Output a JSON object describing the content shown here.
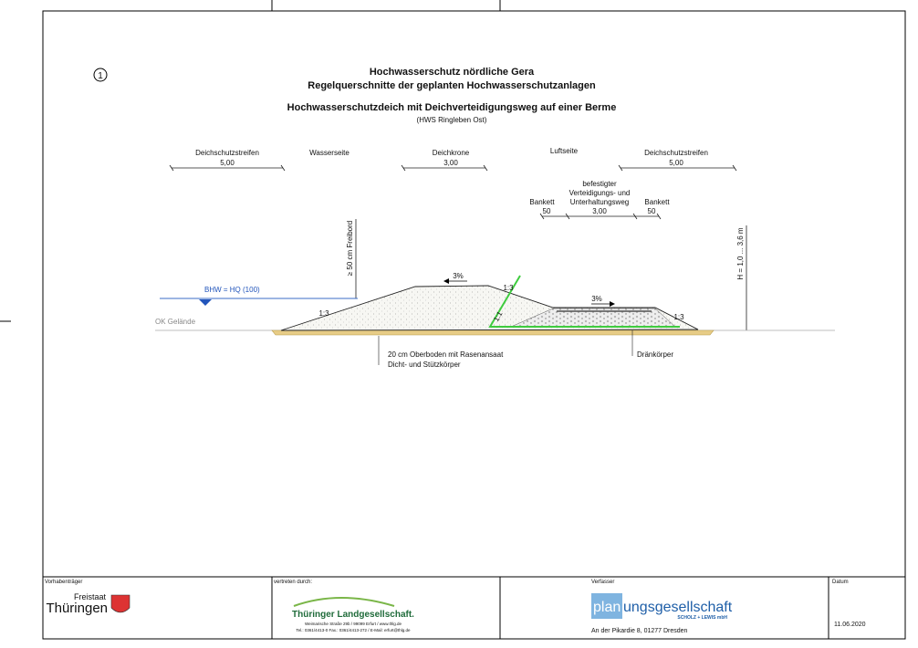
{
  "header": {
    "number": "1",
    "title": "Hochwasserschutz nördliche Gera",
    "subtitle": "Regelquerschnitte der geplanten Hochwasserschutzanlagen",
    "section_title": "Hochwasserschutzdeich mit Deichverteidigungsweg auf einer Berme",
    "section_subtitle": "(HWS Ringleben Ost)"
  },
  "dimensions": {
    "left_strip": {
      "label": "Deichschutzstreifen",
      "value": "5,00"
    },
    "water_side": "Wasserseite",
    "crest": {
      "label": "Deichkrone",
      "value": "3,00"
    },
    "air_side": "Luftseite",
    "right_strip": {
      "label": "Deichschutzstreifen",
      "value": "5,00"
    },
    "path": {
      "lines": [
        "befestigter",
        "Verteidigungs- und",
        "Unterhaltungsweg"
      ],
      "value": "3,00"
    },
    "bankett_left": {
      "label": "Bankett",
      "value": "50"
    },
    "bankett_right": {
      "label": "Bankett",
      "value": "50"
    },
    "height": "H = 1,0 ... 3,6 m",
    "freeboard": "≥ 50 cm Freibord"
  },
  "section": {
    "water_level": "BHW = HQ (100)",
    "ground": "OK Gelände",
    "crest_slope": "3%",
    "path_slope": "3%",
    "slope_left": "1:3",
    "slope_right_upper": "1:3",
    "slope_right_lower": "1:3",
    "inner_slope": "1:1",
    "topsoil": "20 cm Oberboden mit Rasenansaat",
    "core": "Dicht- und Stützkörper",
    "drain": "Dränkörper"
  },
  "footer": {
    "client_label": "Vorhabenträger",
    "client_line1": "Freistaat",
    "client_line2": "Thüringen",
    "rep_label": "vertreten durch:",
    "rep_name": "Thüringer Landgesellschaft.",
    "rep_address": "Weimarische Straße 29b / 99099 Erfurt / www.thlg.de",
    "rep_contact": "Tel.: 0361/4413-0 Fax.: 0361/4413-272 / E-Mail: erfurt@thlg.de",
    "author_label": "Verfasser",
    "author_logo_a": "plan",
    "author_logo_b": "ungsgesellschaft",
    "author_sub": "SCHOLZ + LEWIS mbH",
    "author_address": "An der Pikardie 8, 01277 Dresden",
    "date_label": "Datum",
    "date": "11.06.2020"
  }
}
